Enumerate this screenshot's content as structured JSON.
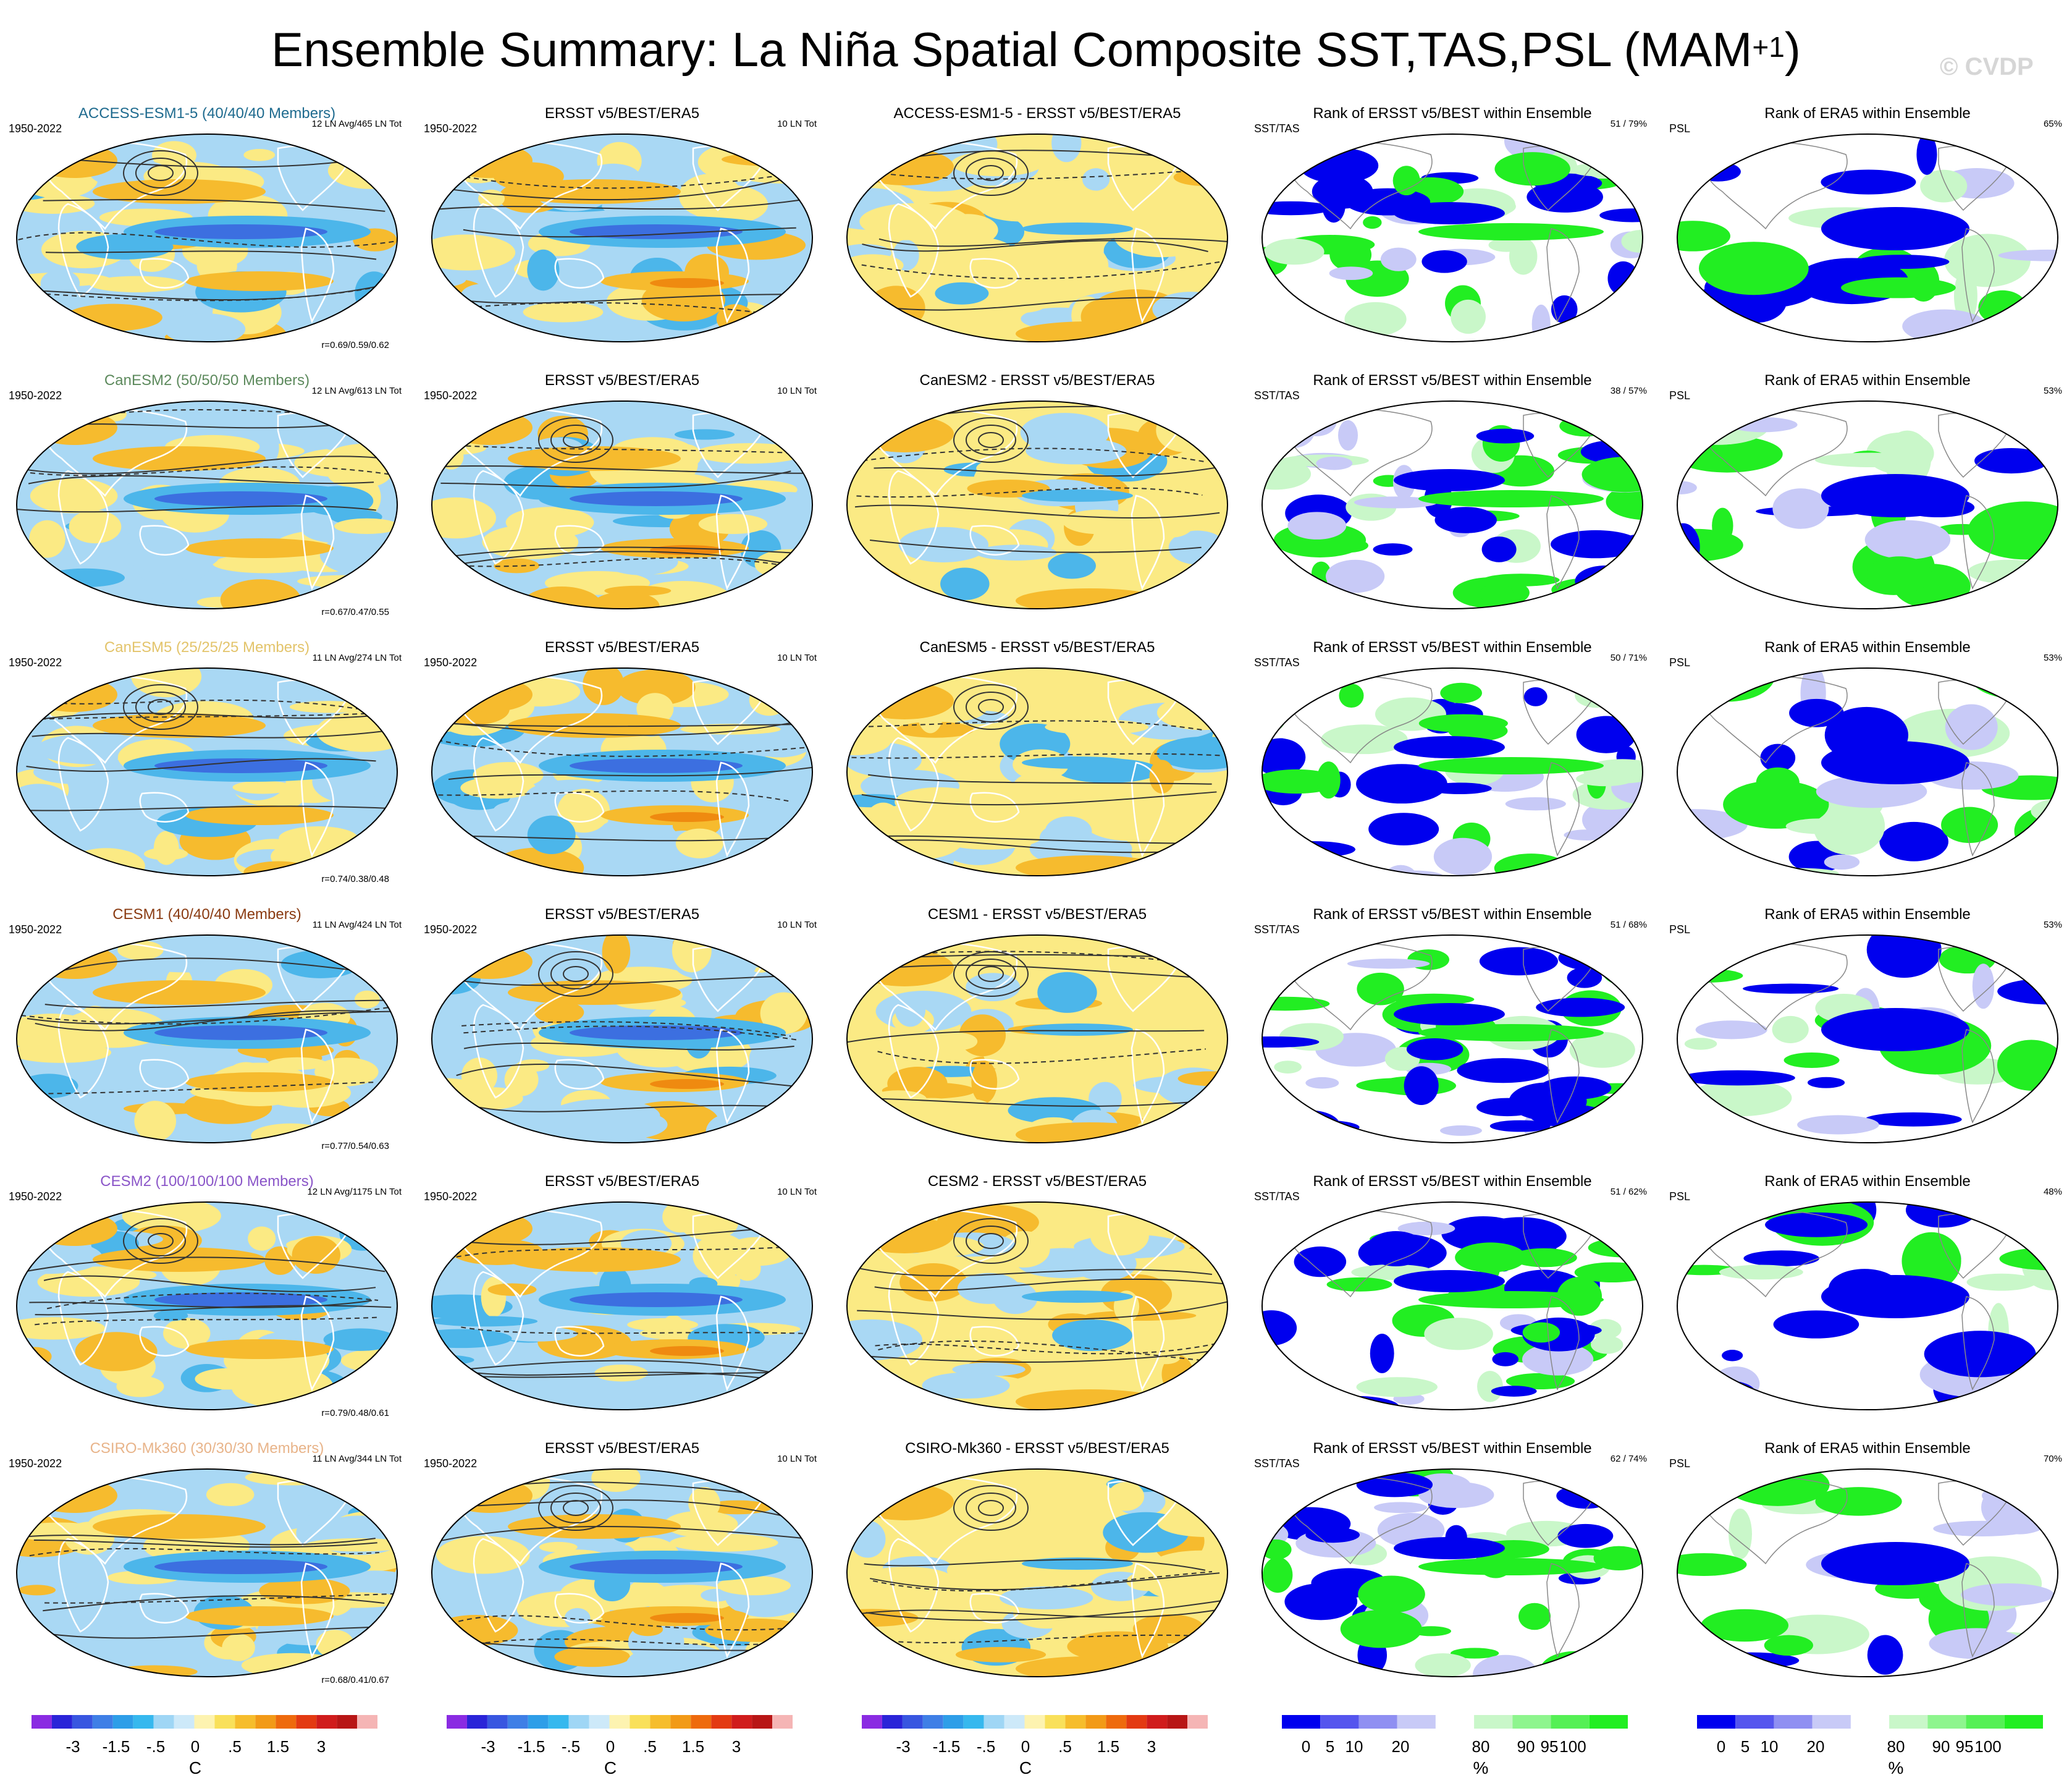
{
  "title": {
    "main": "Ensemble Summary: La Niña Spatial Composite SST,TAS,PSL (MAM",
    "sup": "+1",
    "close": ")"
  },
  "watermark": "© CVDP",
  "colors": {
    "ocean_neg_light": "#a9d8f4",
    "ocean_neg_med": "#4cb6ea",
    "ocean_neg_dark": "#3c6fe0",
    "pos_light": "#fbea84",
    "pos_med": "#f6bb2e",
    "pos_dark": "#ef8a10",
    "rank_blue": "#0000ee",
    "rank_green": "#22ee22",
    "rank_lightblue": "#c8caf7",
    "rank_lightgreen": "#c9f7c9"
  },
  "rows": [
    {
      "model": "ACCESS-ESM1-5 (40/40/40 Members)",
      "model_color": "#1f6b8f",
      "years": "1950-2022",
      "counts": "12 LN Avg/465 LN Tot",
      "corr": "r=0.69/0.59/0.62",
      "obs_title": "ERSST v5/BEST/ERA5",
      "obs_years": "1950-2022",
      "obs_counts": "10 LN Tot",
      "diff_title": "ACCESS-ESM1-5 - ERSST v5/BEST/ERA5",
      "rank1_title": "Rank of ERSST v5/BEST within Ensemble",
      "rank1_left": "SST/TAS",
      "rank1_right": "51 /  79%",
      "rank2_title": "Rank of ERA5 within Ensemble",
      "rank2_left": "PSL",
      "rank2_right": "65%"
    },
    {
      "model": "CanESM2 (50/50/50 Members)",
      "model_color": "#5d8a5d",
      "years": "1950-2022",
      "counts": "12 LN Avg/613 LN Tot",
      "corr": "r=0.67/0.47/0.55",
      "obs_title": "ERSST v5/BEST/ERA5",
      "obs_years": "1950-2022",
      "obs_counts": "10 LN Tot",
      "diff_title": "CanESM2 - ERSST v5/BEST/ERA5",
      "rank1_title": "Rank of ERSST v5/BEST within Ensemble",
      "rank1_left": "SST/TAS",
      "rank1_right": "38 /  57%",
      "rank2_title": "Rank of ERA5 within Ensemble",
      "rank2_left": "PSL",
      "rank2_right": "53%"
    },
    {
      "model": "CanESM5 (25/25/25 Members)",
      "model_color": "#e3c46b",
      "years": "1950-2022",
      "counts": "11 LN Avg/274 LN Tot",
      "corr": "r=0.74/0.38/0.48",
      "obs_title": "ERSST v5/BEST/ERA5",
      "obs_years": "1950-2022",
      "obs_counts": "10 LN Tot",
      "diff_title": "CanESM5 - ERSST v5/BEST/ERA5",
      "rank1_title": "Rank of ERSST v5/BEST within Ensemble",
      "rank1_left": "SST/TAS",
      "rank1_right": "50 /  71%",
      "rank2_title": "Rank of ERA5 within Ensemble",
      "rank2_left": "PSL",
      "rank2_right": "53%"
    },
    {
      "model": "CESM1 (40/40/40 Members)",
      "model_color": "#8a3b12",
      "years": "1950-2022",
      "counts": "11 LN Avg/424 LN Tot",
      "corr": "r=0.77/0.54/0.63",
      "obs_title": "ERSST v5/BEST/ERA5",
      "obs_years": "1950-2022",
      "obs_counts": "10 LN Tot",
      "diff_title": "CESM1 - ERSST v5/BEST/ERA5",
      "rank1_title": "Rank of ERSST v5/BEST within Ensemble",
      "rank1_left": "SST/TAS",
      "rank1_right": "51 /  68%",
      "rank2_title": "Rank of ERA5 within Ensemble",
      "rank2_left": "PSL",
      "rank2_right": "53%"
    },
    {
      "model": "CESM2 (100/100/100 Members)",
      "model_color": "#8a55c8",
      "years": "1950-2022",
      "counts": "12 LN Avg/1175 LN Tot",
      "corr": "r=0.79/0.48/0.61",
      "obs_title": "ERSST v5/BEST/ERA5",
      "obs_years": "1950-2022",
      "obs_counts": "10 LN Tot",
      "diff_title": "CESM2 - ERSST v5/BEST/ERA5",
      "rank1_title": "Rank of ERSST v5/BEST within Ensemble",
      "rank1_left": "SST/TAS",
      "rank1_right": "51 /  62%",
      "rank2_title": "Rank of ERA5 within Ensemble",
      "rank2_left": "PSL",
      "rank2_right": "48%"
    },
    {
      "model": "CSIRO-Mk360 (30/30/30 Members)",
      "model_color": "#e8b48a",
      "years": "1950-2022",
      "counts": "11 LN Avg/344 LN Tot",
      "corr": "r=0.68/0.41/0.67",
      "obs_title": "ERSST v5/BEST/ERA5",
      "obs_years": "1950-2022",
      "obs_counts": "10 LN Tot",
      "diff_title": "CSIRO-Mk360 - ERSST v5/BEST/ERA5",
      "rank1_title": "Rank of ERSST v5/BEST within Ensemble",
      "rank1_left": "SST/TAS",
      "rank1_right": "62 /  74%",
      "rank2_title": "Rank of ERA5 within Ensemble",
      "rank2_left": "PSL",
      "rank2_right": "70%"
    }
  ],
  "colorbar_anom": {
    "unit": "C",
    "labels": [
      "-3",
      "-1.5",
      "-.5",
      "0",
      ".5",
      "1.5",
      "3"
    ],
    "colors": [
      "#8a2be2",
      "#2a24d8",
      "#3856e0",
      "#3f7fe6",
      "#2e9ee8",
      "#36b8ee",
      "#9fd6f5",
      "#cde9f9",
      "#fdf3b0",
      "#f9e05a",
      "#f6bd2c",
      "#f29a17",
      "#ee6a0d",
      "#e33a12",
      "#d01c1c",
      "#b81616",
      "#f5b5b5"
    ]
  },
  "colorbar_rank": {
    "unit": "%",
    "labels": [
      "0",
      "5",
      "10",
      "20",
      "80",
      "90",
      "95",
      "100"
    ],
    "colors": [
      "#0000ee",
      "#5555ee",
      "#8f8ff2",
      "#c8caf7",
      "#ffffff",
      "#c9f7c9",
      "#8ef58e",
      "#55f055",
      "#22ee22"
    ]
  }
}
